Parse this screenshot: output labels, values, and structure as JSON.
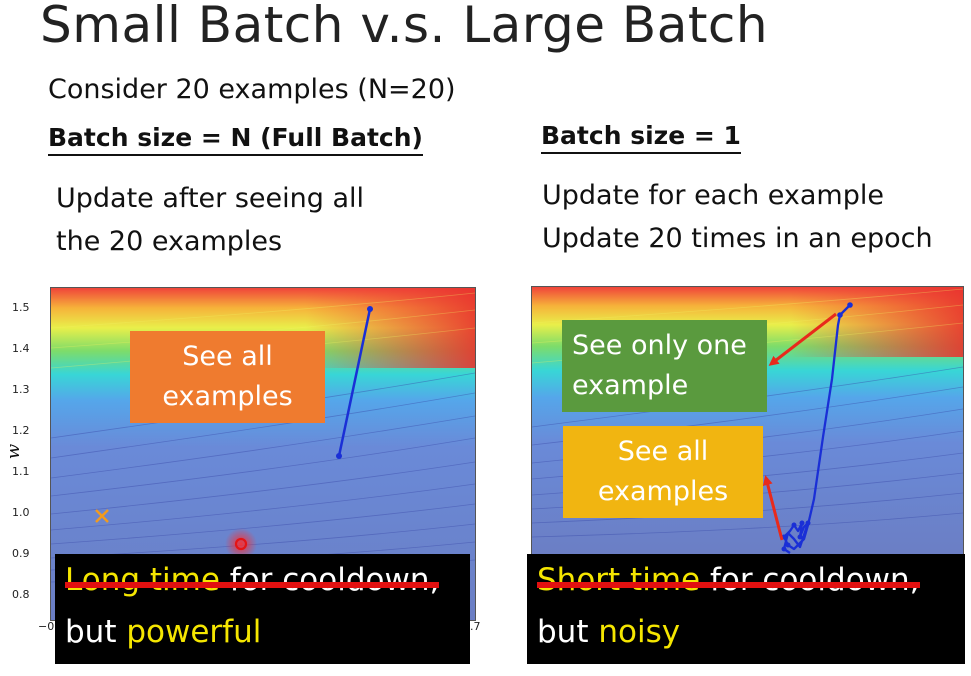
{
  "title": "Small Batch v.s. Large Batch",
  "consider": "Consider 20 examples (N=20)",
  "left": {
    "header": "Batch size = N (Full Batch)",
    "desc_line1": "Update after seeing all",
    "desc_line2": "the 20 examples",
    "callout_line1": "See all",
    "callout_line2": "examples",
    "banner_line1_highlight": "Long time",
    "banner_line1_rest": " for cooldown,",
    "banner_line2_prefix": "but ",
    "banner_line2_highlight": "powerful"
  },
  "right": {
    "header": "Batch size = 1",
    "desc_line1": "Update for each example",
    "desc_line2": "Update 20 times in an epoch",
    "callout_green_line1": "See only one",
    "callout_green_line2": "example",
    "callout_yellow_line1": "See all",
    "callout_yellow_line2": "examples",
    "banner_line1_highlight": "Short time",
    "banner_line1_rest": " for cooldown,",
    "banner_line2_prefix": "but ",
    "banner_line2_highlight": "noisy"
  },
  "axis": {
    "ylabel": "w",
    "yticks": [
      "1.5",
      "1.4",
      "1.3",
      "1.2",
      "1.1",
      "1.0",
      "0.9",
      "0.8"
    ],
    "xtick_left": "−0",
    "xtick_right": ".7"
  },
  "colors": {
    "callout_orange": "#ef7b2f",
    "callout_green": "#5a9a3e",
    "callout_yellow": "#f1b511",
    "banner_bg": "#000000",
    "highlight_text": "#f5e600",
    "strike": "#e21010",
    "path": "#1a2fd6",
    "arrow": "#e82a1c"
  }
}
